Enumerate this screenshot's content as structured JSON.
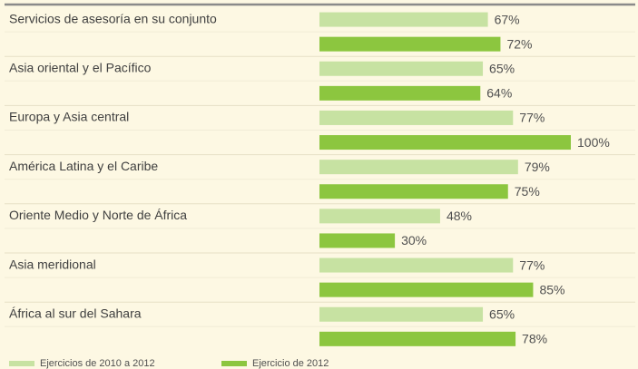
{
  "chart_data": {
    "type": "hbar",
    "categories": [
      "Servicios de asesoría en su conjunto",
      "Asia oriental y el Pacífico",
      "Europa y Asia central",
      "América Latina y el Caribe",
      "Oriente Medio y Norte de África",
      "Asia meridional",
      "África al sur del Sahara"
    ],
    "series": [
      {
        "name": "Ejercicios de 2010 a 2012",
        "color": "#c7e2a2",
        "values": [
          67,
          65,
          77,
          79,
          48,
          77,
          65
        ],
        "value_labels": [
          "67%",
          "65%",
          "77%",
          "79%",
          "48%",
          "77%",
          "65%"
        ]
      },
      {
        "name": "Ejercicio de 2012",
        "color": "#8cc63f",
        "values": [
          72,
          64,
          100,
          75,
          30,
          85,
          78
        ],
        "value_labels": [
          "72%",
          "64%",
          "100%",
          "75%",
          "30%",
          "85%",
          "78%"
        ]
      }
    ],
    "xlim": [
      0,
      100
    ]
  }
}
